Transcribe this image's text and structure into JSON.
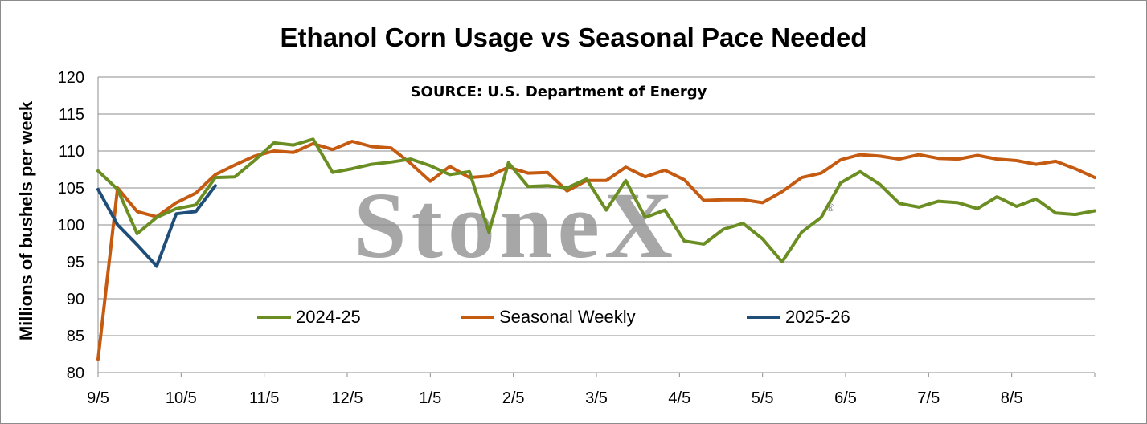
{
  "chart_data": {
    "type": "line",
    "title": "Ethanol Corn Usage vs Seasonal Pace Needed",
    "annotation": "SOURCE: U.S. Department of Energy",
    "watermark": "StoneX",
    "watermark_mark": "®",
    "ylabel": "Millions of bushels per week",
    "ylim": [
      80,
      120
    ],
    "yticks": [
      80,
      85,
      90,
      95,
      100,
      105,
      110,
      115,
      120
    ],
    "xticks": [
      "9/5",
      "10/5",
      "11/5",
      "12/5",
      "1/5",
      "2/5",
      "3/5",
      "4/5",
      "5/5",
      "6/5",
      "7/5",
      "8/5"
    ],
    "n_weeks": 52,
    "grid": true,
    "legend_position": "middle-left",
    "series": [
      {
        "name": "2024-25",
        "color": "#6b8e23",
        "values": [
          107.3,
          104.8,
          98.8,
          101.0,
          102.2,
          102.7,
          106.4,
          106.5,
          108.7,
          111.1,
          110.8,
          111.6,
          107.1,
          107.6,
          108.2,
          108.5,
          108.9,
          108.0,
          106.8,
          107.2,
          99.0,
          108.4,
          105.2,
          105.3,
          105.0,
          106.2,
          102.0,
          106.0,
          101.0,
          102.0,
          97.8,
          97.4,
          99.4,
          100.2,
          98.1,
          95.0,
          99.0,
          101.0,
          105.7,
          107.2,
          105.5,
          102.9,
          102.4,
          103.2,
          103.0,
          102.2,
          103.8,
          102.5,
          103.5,
          101.6,
          101.4,
          101.9
        ]
      },
      {
        "name": "Seasonal Weekly",
        "color": "#c55a11",
        "values": [
          81.8,
          105.0,
          101.8,
          101.1,
          103.0,
          104.3,
          106.8,
          108.1,
          109.3,
          110.0,
          109.8,
          111.0,
          110.2,
          111.3,
          110.6,
          110.4,
          108.3,
          105.9,
          107.9,
          106.4,
          106.6,
          107.8,
          107.0,
          107.1,
          104.6,
          106.0,
          106.0,
          107.8,
          106.5,
          107.4,
          106.1,
          103.3,
          103.4,
          103.4,
          103.0,
          104.5,
          106.4,
          107.0,
          108.8,
          109.5,
          109.3,
          108.9,
          109.5,
          109.0,
          108.9,
          109.4,
          108.9,
          108.7,
          108.2,
          108.6,
          107.6,
          106.4
        ]
      },
      {
        "name": "2025-26",
        "color": "#1f4e79",
        "values": [
          104.8,
          100.0,
          97.3,
          94.4,
          101.5,
          101.8,
          105.3
        ]
      }
    ]
  }
}
